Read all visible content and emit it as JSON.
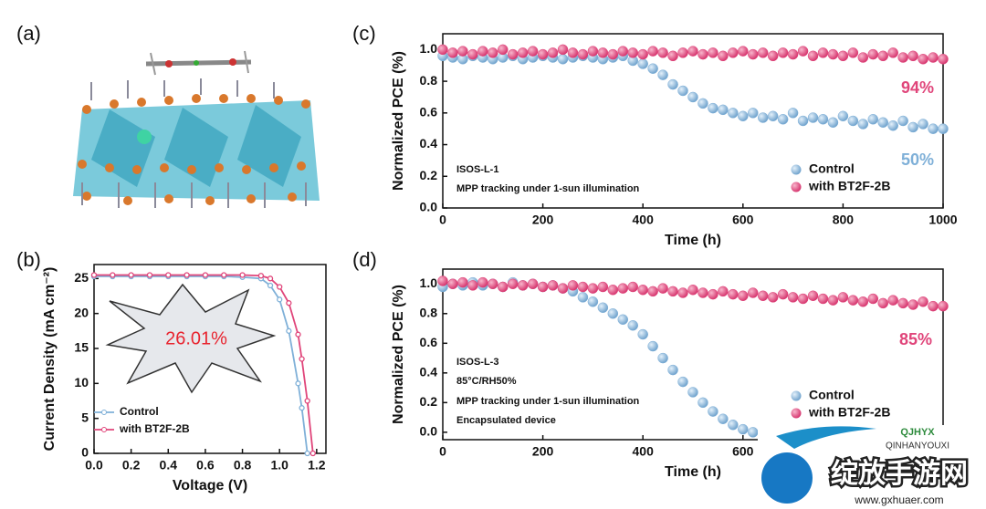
{
  "panels": [
    "(a)",
    "(b)",
    "(c)",
    "(d)"
  ],
  "chart_data": [
    {
      "type": "line",
      "x_label": "Voltage (V)",
      "y_label": "Current Density (mA cm⁻²)",
      "x": [
        0,
        0.1,
        0.2,
        0.3,
        0.4,
        0.5,
        0.6,
        0.7,
        0.8,
        0.9,
        0.95,
        1.0,
        1.05,
        1.1,
        1.12,
        1.15,
        1.18
      ],
      "series": [
        {
          "name": "Control",
          "color": "#7fb0d8",
          "values": [
            25.3,
            25.3,
            25.3,
            25.3,
            25.3,
            25.3,
            25.3,
            25.3,
            25.2,
            25.0,
            24.0,
            22.0,
            17.5,
            10.0,
            6.5,
            0,
            null
          ]
        },
        {
          "name": "with BT2F-2B",
          "color": "#e0457a",
          "values": [
            25.5,
            25.5,
            25.5,
            25.5,
            25.5,
            25.5,
            25.5,
            25.5,
            25.5,
            25.4,
            25.0,
            23.8,
            21.5,
            17.0,
            13.5,
            7.5,
            0
          ]
        }
      ],
      "xlim": [
        0,
        1.25
      ],
      "xticks": [
        {
          "value": 0,
          "label": "0.0"
        },
        0.2,
        0.4,
        0.6,
        0.8,
        {
          "value": 1,
          "label": "1.0"
        },
        1.2
      ],
      "ylim": [
        0,
        27
      ],
      "yticks": [
        0,
        5,
        10,
        15,
        20,
        25
      ],
      "legend": "lower left",
      "annotations": [
        {
          "text": "26.01%",
          "color": "#e8242f"
        }
      ]
    },
    {
      "type": "scatter",
      "x_label": "Time (h)",
      "y_label": "Normalized PCE (%)",
      "x": [
        0,
        20,
        40,
        60,
        80,
        100,
        120,
        140,
        160,
        180,
        200,
        220,
        240,
        260,
        280,
        300,
        320,
        340,
        360,
        380,
        400,
        420,
        440,
        460,
        480,
        500,
        520,
        540,
        560,
        580,
        600,
        620,
        640,
        660,
        680,
        700,
        720,
        740,
        760,
        780,
        800,
        820,
        840,
        860,
        880,
        900,
        920,
        940,
        960,
        980,
        1000
      ],
      "series": [
        {
          "name": "Control",
          "color": "#7fb0d8",
          "values": [
            0.96,
            0.95,
            0.94,
            0.96,
            0.95,
            0.94,
            0.95,
            0.96,
            0.94,
            0.95,
            0.96,
            0.95,
            0.94,
            0.95,
            0.96,
            0.95,
            0.94,
            0.95,
            0.96,
            0.93,
            0.91,
            0.88,
            0.84,
            0.78,
            0.74,
            0.7,
            0.66,
            0.63,
            0.62,
            0.6,
            0.58,
            0.6,
            0.57,
            0.58,
            0.56,
            0.6,
            0.55,
            0.57,
            0.56,
            0.54,
            0.58,
            0.55,
            0.53,
            0.56,
            0.54,
            0.52,
            0.55,
            0.51,
            0.53,
            0.5,
            0.5
          ]
        },
        {
          "name": "with BT2F-2B",
          "color": "#e0457a",
          "values": [
            1.0,
            0.98,
            0.99,
            0.97,
            0.99,
            0.98,
            1.0,
            0.97,
            0.98,
            0.99,
            0.97,
            0.98,
            1.0,
            0.98,
            0.97,
            0.99,
            0.98,
            0.97,
            0.99,
            0.98,
            0.97,
            0.99,
            0.98,
            0.96,
            0.98,
            0.99,
            0.97,
            0.98,
            0.96,
            0.98,
            0.99,
            0.97,
            0.98,
            0.96,
            0.98,
            0.97,
            0.99,
            0.96,
            0.98,
            0.97,
            0.96,
            0.98,
            0.95,
            0.97,
            0.96,
            0.98,
            0.95,
            0.96,
            0.94,
            0.95,
            0.94
          ]
        }
      ],
      "xlim": [
        0,
        1000
      ],
      "xticks": [
        0,
        200,
        400,
        600,
        800,
        1000
      ],
      "ylim": [
        0,
        1.1
      ],
      "yticks": [
        {
          "value": 0,
          "label": "0.0"
        },
        0.2,
        0.4,
        0.6,
        0.8,
        {
          "value": 1,
          "label": "1.0"
        }
      ],
      "legend": "lower right",
      "annotations": [
        {
          "text": "94%",
          "color": "#e0457a"
        },
        {
          "text": "50%",
          "color": "#7fb0d8"
        },
        {
          "text": "ISOS-L-1",
          "color": "#111"
        },
        {
          "text": "MPP tracking under 1-sun illumination",
          "color": "#111"
        }
      ]
    },
    {
      "type": "scatter",
      "x_label": "Time (h)",
      "y_label": "Normalized PCE (%)",
      "x": [
        0,
        20,
        40,
        60,
        80,
        100,
        120,
        140,
        160,
        180,
        200,
        220,
        240,
        260,
        280,
        300,
        320,
        340,
        360,
        380,
        400,
        420,
        440,
        460,
        480,
        500,
        520,
        540,
        560,
        580,
        600,
        620,
        640,
        660,
        680,
        700,
        720,
        740,
        760,
        780,
        800,
        820,
        840,
        860,
        880,
        900,
        920,
        940,
        960,
        980,
        1000
      ],
      "series": [
        {
          "name": "Control",
          "color": "#7fb0d8",
          "values": [
            0.98,
            1.0,
            0.99,
            1.01,
            0.99,
            1.0,
            0.98,
            1.01,
            0.99,
            1.0,
            0.98,
            0.99,
            0.97,
            0.95,
            0.91,
            0.88,
            0.84,
            0.8,
            0.76,
            0.72,
            0.66,
            0.58,
            0.5,
            0.42,
            0.34,
            0.27,
            0.2,
            0.14,
            0.09,
            0.05,
            0.02,
            0.0,
            null,
            null,
            null,
            null,
            null,
            null,
            null,
            null,
            null,
            null,
            null,
            null,
            null,
            null,
            null,
            null,
            null,
            null,
            null
          ]
        },
        {
          "name": "with BT2F-2B",
          "color": "#e0457a",
          "values": [
            1.02,
            1.0,
            1.01,
            0.99,
            1.01,
            1.0,
            0.98,
            1.0,
            0.99,
            1.0,
            0.98,
            0.99,
            0.97,
            0.99,
            0.98,
            0.97,
            0.98,
            0.96,
            0.97,
            0.98,
            0.96,
            0.95,
            0.97,
            0.95,
            0.94,
            0.96,
            0.94,
            0.93,
            0.95,
            0.93,
            0.92,
            0.94,
            0.92,
            0.91,
            0.93,
            0.91,
            0.9,
            0.92,
            0.9,
            0.89,
            0.91,
            0.89,
            0.88,
            0.9,
            0.87,
            0.89,
            0.87,
            0.86,
            0.88,
            0.85,
            0.85
          ]
        }
      ],
      "xlim": [
        0,
        1000
      ],
      "xticks": [
        0,
        200,
        400,
        600
      ],
      "ylim": [
        -0.05,
        1.1
      ],
      "yticks": [
        {
          "value": 0,
          "label": "0.0"
        },
        0.2,
        0.4,
        0.6,
        0.8,
        {
          "value": 1,
          "label": "1.0"
        }
      ],
      "legend": "lower right",
      "annotations": [
        {
          "text": "85%",
          "color": "#e0457a"
        },
        {
          "text": "ISOS-L-3",
          "color": "#111"
        },
        {
          "text": "85°C/RH50%",
          "color": "#111"
        },
        {
          "text": "MPP tracking under 1-sun illumination",
          "color": "#111"
        },
        {
          "text": "Encapsulated device",
          "color": "#111"
        }
      ]
    }
  ],
  "watermark": {
    "brand": "QJHYX",
    "name": "QINHANYOUXI",
    "site": "绽放手游网",
    "url": "www.gxhuaer.com"
  }
}
